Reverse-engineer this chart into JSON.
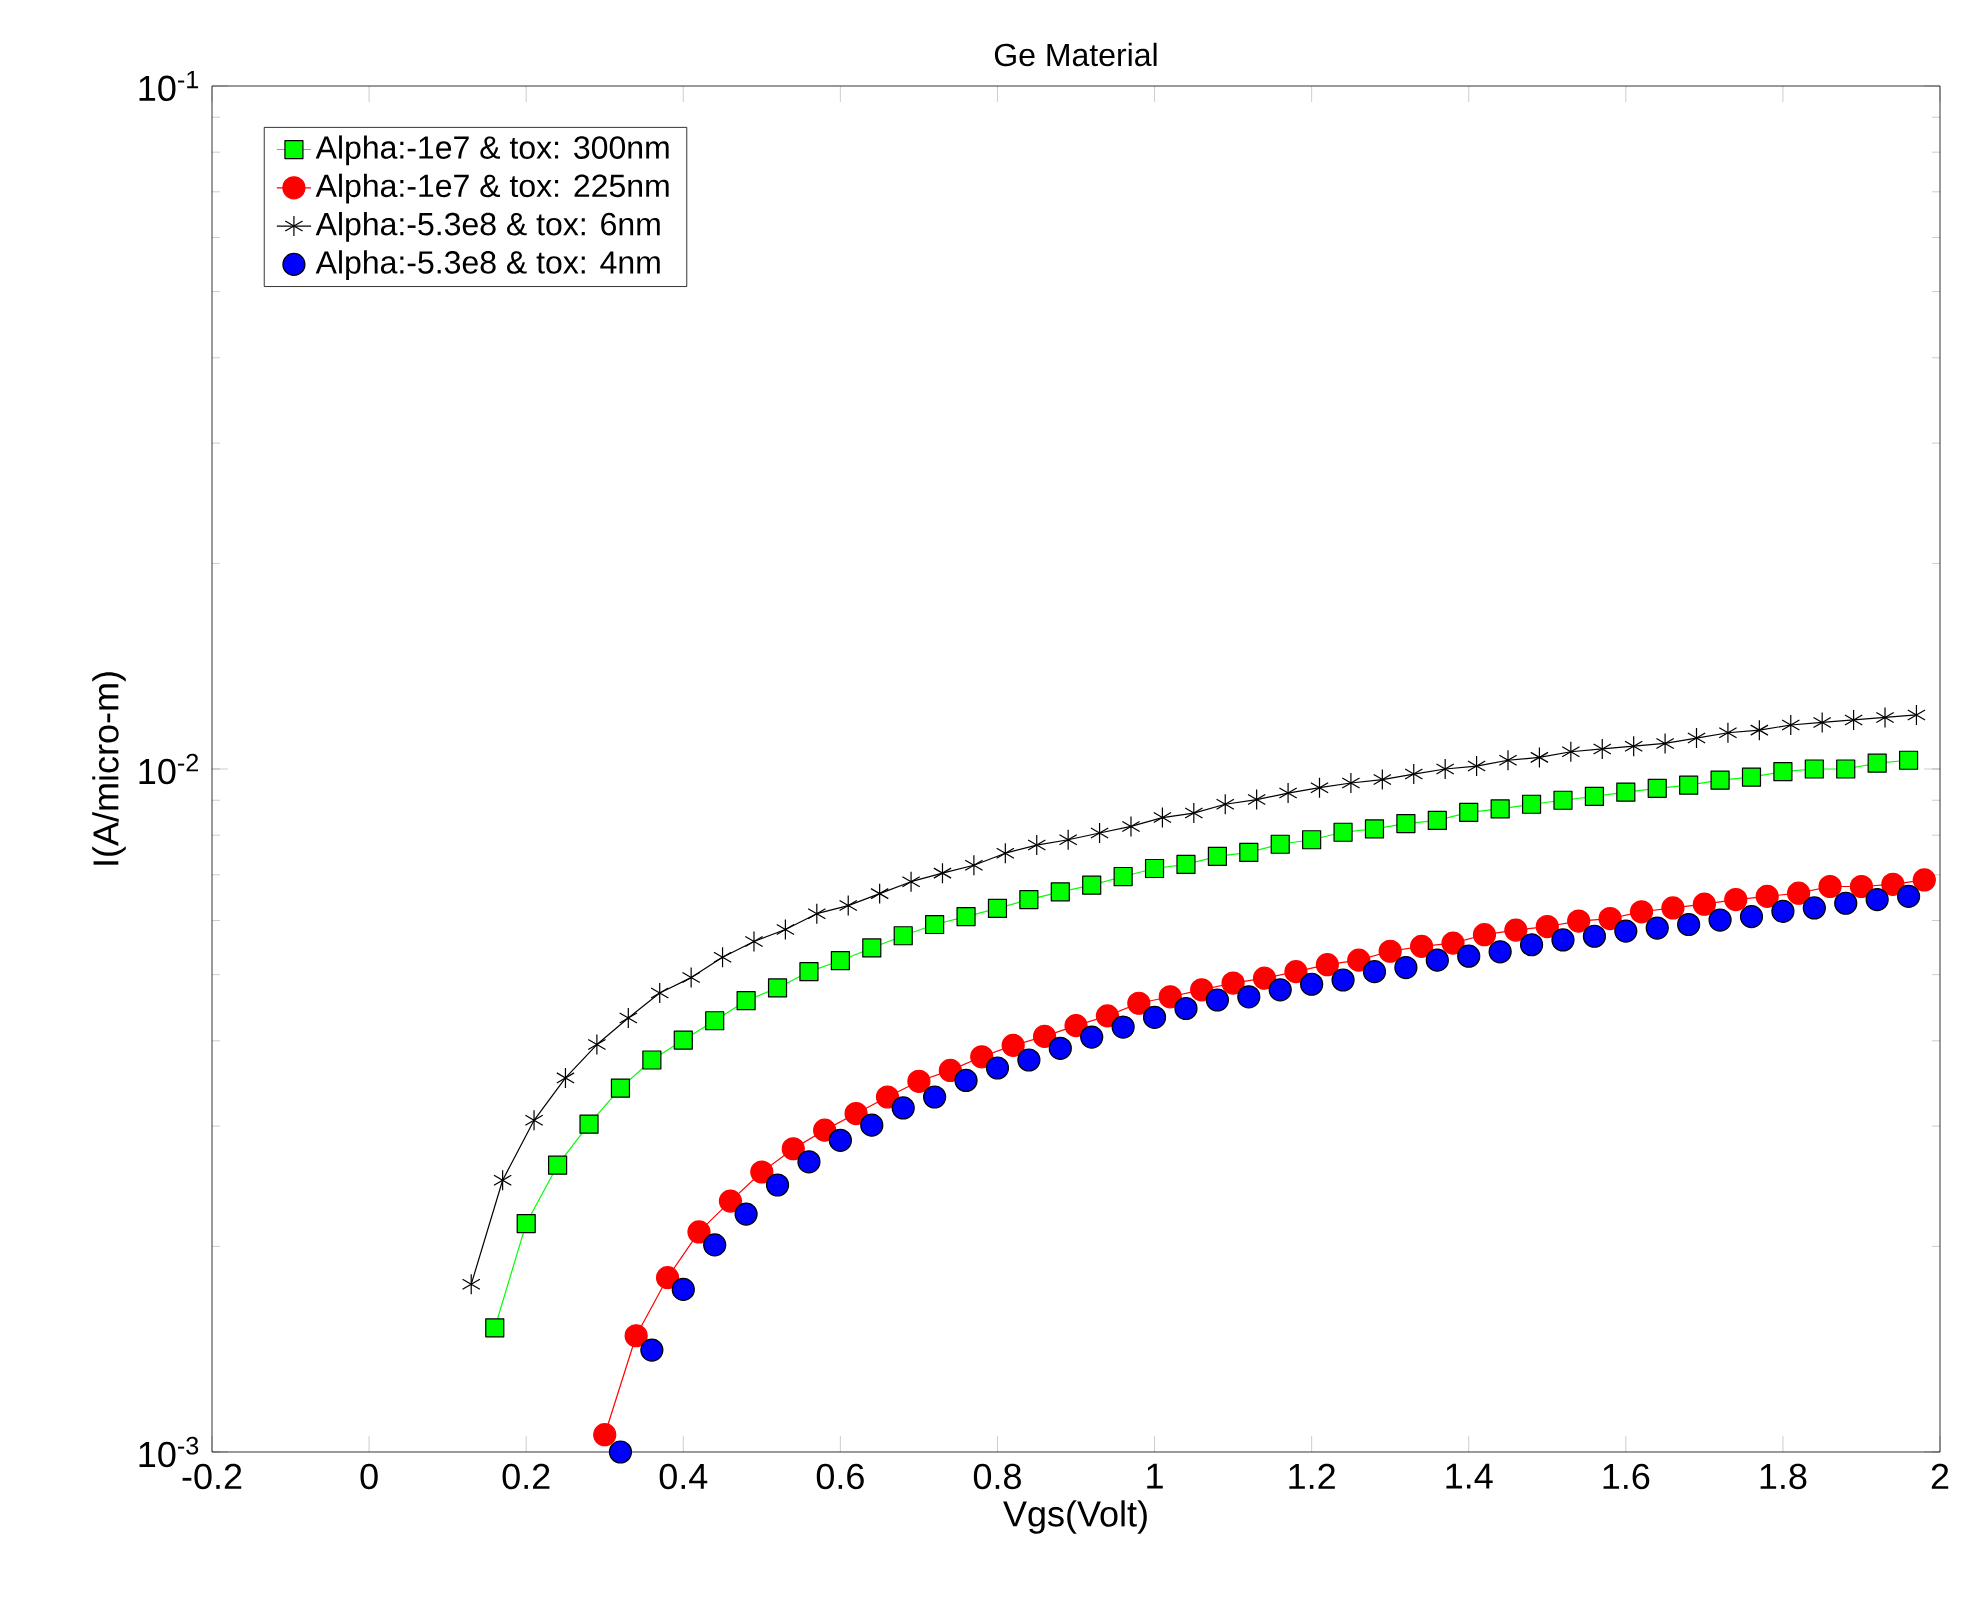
{
  "chart_data": {
    "type": "line",
    "title": "Ge Material",
    "xlabel": "Vgs(Volt)",
    "ylabel": "I(A/micro-m)",
    "xlim": [
      -0.2,
      2
    ],
    "xticks": [
      -0.2,
      0,
      0.2,
      0.4,
      0.6,
      0.8,
      1,
      1.2,
      1.4,
      1.6,
      1.8,
      2
    ],
    "ylim": [
      0.001,
      0.1
    ],
    "yticks": [
      {
        "value": 0.001,
        "label": "10$^{-3}$"
      },
      {
        "value": 0.01,
        "label": "10$^{-2}$"
      },
      {
        "value": 0.1,
        "label": "10$^{-1}$"
      }
    ],
    "log": "y",
    "grid": false,
    "legend": "top left",
    "series": [
      {
        "name": "Alpha:-1e7 & tox: 300nm",
        "color": "#00ff00",
        "marker": "square",
        "x": [
          0.16,
          0.2,
          0.24,
          0.28,
          0.32,
          0.36,
          0.4,
          0.44,
          0.48,
          0.52,
          0.56,
          0.6,
          0.64,
          0.68,
          0.72,
          0.76,
          0.8,
          0.84,
          0.88,
          0.92,
          0.96,
          1,
          1.04,
          1.08,
          1.12,
          1.16,
          1.2,
          1.24,
          1.28,
          1.32,
          1.36,
          1.4,
          1.44,
          1.48,
          1.52,
          1.56,
          1.6,
          1.64,
          1.68,
          1.72,
          1.76,
          1.8,
          1.84,
          1.88,
          1.92,
          1.96
        ],
        "values": [
          0.00152,
          0.00216,
          0.00263,
          0.00302,
          0.00341,
          0.00375,
          0.00401,
          0.00428,
          0.00458,
          0.00478,
          0.00505,
          0.00524,
          0.00547,
          0.0057,
          0.00592,
          0.00608,
          0.00625,
          0.00644,
          0.00661,
          0.00676,
          0.00696,
          0.00715,
          0.00725,
          0.00745,
          0.00755,
          0.00776,
          0.00788,
          0.00808,
          0.00817,
          0.00832,
          0.00841,
          0.00864,
          0.00874,
          0.00888,
          0.009,
          0.00912,
          0.00925,
          0.00937,
          0.00947,
          0.00963,
          0.00973,
          0.00991,
          0.01,
          0.01,
          0.0102,
          0.0103
        ]
      },
      {
        "name": "Alpha:-1e7 & tox: 225nm",
        "color": "#ff0000",
        "marker": "circle",
        "x": [
          0.3,
          0.34,
          0.38,
          0.42,
          0.46,
          0.5,
          0.54,
          0.58,
          0.62,
          0.66,
          0.7,
          0.74,
          0.78,
          0.82,
          0.86,
          0.9,
          0.94,
          0.98,
          1.02,
          1.06,
          1.1,
          1.14,
          1.18,
          1.22,
          1.26,
          1.3,
          1.34,
          1.38,
          1.42,
          1.46,
          1.5,
          1.54,
          1.58,
          1.62,
          1.66,
          1.7,
          1.74,
          1.78,
          1.82,
          1.86,
          1.9,
          1.94,
          1.98
        ],
        "values": [
          0.00106,
          0.00148,
          0.0018,
          0.0021,
          0.00233,
          0.00257,
          0.00278,
          0.00296,
          0.00313,
          0.00331,
          0.00349,
          0.00362,
          0.00379,
          0.00394,
          0.00406,
          0.00421,
          0.00435,
          0.00454,
          0.00464,
          0.00475,
          0.00486,
          0.00494,
          0.00505,
          0.00517,
          0.00525,
          0.00541,
          0.0055,
          0.00556,
          0.00572,
          0.00581,
          0.00588,
          0.00599,
          0.00604,
          0.00618,
          0.00626,
          0.00634,
          0.00644,
          0.00651,
          0.00658,
          0.00673,
          0.00673,
          0.00678,
          0.00688
        ]
      },
      {
        "name": "Alpha:-5.3e8 & tox: 6nm",
        "color": "#000000",
        "marker": "cross",
        "x": [
          0.13,
          0.17,
          0.21,
          0.25,
          0.29,
          0.33,
          0.37,
          0.41,
          0.45,
          0.49,
          0.53,
          0.57,
          0.61,
          0.65,
          0.69,
          0.73,
          0.77,
          0.81,
          0.85,
          0.89,
          0.93,
          0.97,
          1.01,
          1.05,
          1.09,
          1.13,
          1.17,
          1.21,
          1.25,
          1.29,
          1.33,
          1.37,
          1.41,
          1.45,
          1.49,
          1.53,
          1.57,
          1.61,
          1.65,
          1.69,
          1.73,
          1.77,
          1.81,
          1.85,
          1.89,
          1.93,
          1.97
        ],
        "values": [
          0.00176,
          0.0025,
          0.00306,
          0.00353,
          0.00395,
          0.00432,
          0.0047,
          0.00495,
          0.0053,
          0.00559,
          0.00582,
          0.00614,
          0.00631,
          0.00657,
          0.00684,
          0.00704,
          0.00723,
          0.00753,
          0.00774,
          0.00788,
          0.00806,
          0.00824,
          0.00849,
          0.00862,
          0.00888,
          0.00902,
          0.00922,
          0.00939,
          0.00954,
          0.00965,
          0.00983,
          0.01,
          0.0101,
          0.0103,
          0.0104,
          0.0106,
          0.0107,
          0.0108,
          0.0109,
          0.0111,
          0.0113,
          0.0114,
          0.0116,
          0.0117,
          0.0118,
          0.0119,
          0.012
        ]
      },
      {
        "name": "Alpha:-5.3e8 & tox: 4nm",
        "type": "scatter",
        "color": "#0000ff",
        "marker": "circle",
        "x": [
          0.32,
          0.36,
          0.4,
          0.44,
          0.48,
          0.52,
          0.56,
          0.6,
          0.64,
          0.68,
          0.72,
          0.76,
          0.8,
          0.84,
          0.88,
          0.92,
          0.96,
          1,
          1.04,
          1.08,
          1.12,
          1.16,
          1.2,
          1.24,
          1.28,
          1.32,
          1.36,
          1.4,
          1.44,
          1.48,
          1.52,
          1.56,
          1.6,
          1.64,
          1.68,
          1.72,
          1.76,
          1.8,
          1.84,
          1.88,
          1.92,
          1.96
        ],
        "values": [
          0.001,
          0.00141,
          0.00173,
          0.00201,
          0.00223,
          0.00246,
          0.00266,
          0.00286,
          0.00301,
          0.00319,
          0.00331,
          0.0035,
          0.00365,
          0.00375,
          0.0039,
          0.00405,
          0.00419,
          0.00433,
          0.00446,
          0.00459,
          0.00464,
          0.00475,
          0.00484,
          0.00491,
          0.00505,
          0.00512,
          0.00525,
          0.00532,
          0.0054,
          0.00553,
          0.00562,
          0.00569,
          0.00579,
          0.00585,
          0.00592,
          0.00601,
          0.00608,
          0.00619,
          0.00626,
          0.00636,
          0.00644,
          0.00651
        ]
      }
    ]
  }
}
